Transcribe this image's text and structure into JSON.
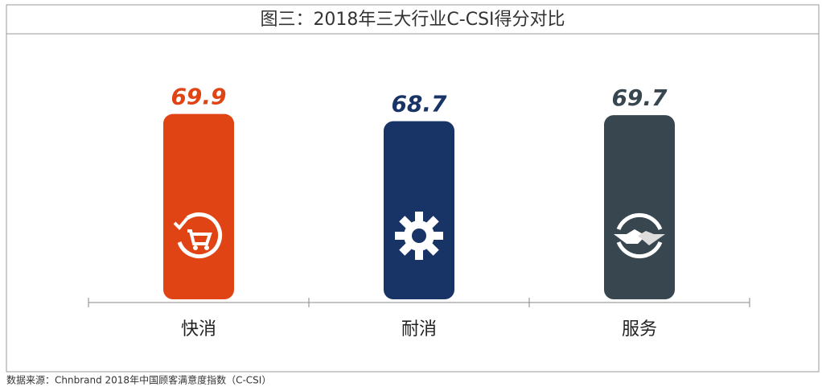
{
  "chart_data": {
    "type": "bar",
    "title": "图三：2018年三大行业C-CSI得分对比",
    "categories": [
      "快消",
      "耐消",
      "服务"
    ],
    "values": [
      69.9,
      68.7,
      69.7
    ],
    "colors": [
      "#e04414",
      "#183366",
      "#38474f"
    ],
    "ylim": [
      39,
      72
    ],
    "source": "数据来源：Chnbrand 2018年中国顾客满意度指数（C-CSI）"
  }
}
